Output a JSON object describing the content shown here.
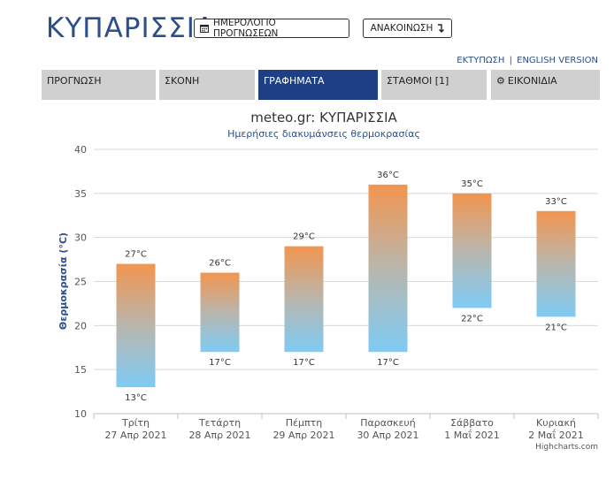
{
  "header": {
    "city": "ΚΥΠΑΡΙΣΣΙΑ",
    "calendar_button": "ΗΜΕΡΟΛΟΓΙΟ ΠΡΟΓΝΩΣΕΩΝ",
    "announce_button": "ΑΝΑΚΟΙΝΩΣΗ",
    "print_link": "ΕΚΤΥΠΩΣΗ",
    "separator": "|",
    "english_link": "ENGLISH VERSION"
  },
  "tabs": [
    {
      "label": "ΠΡΟΓΝΩΣΗ",
      "active": false
    },
    {
      "label": "ΣΚΟΝΗ",
      "active": false
    },
    {
      "label": "ΓΡΑΦΗΜΑΤΑ",
      "active": true
    },
    {
      "label": "ΣΤΑΘΜΟΙ [1]",
      "active": false
    },
    {
      "label": "ΕΙΚΟΝΙΔΙΑ",
      "active": false
    }
  ],
  "colors": {
    "brand": "#2c4f8c",
    "active_tab": "#1f3f85",
    "tab_bg": "#d0d0d0",
    "bar_top": "#f2954f",
    "bar_bottom": "#7ecbf5"
  },
  "chart_data": {
    "type": "bar",
    "title": "meteo.gr: ΚΥΠΑΡΙΣΣΙΑ",
    "subtitle": "Ημερήσιες διακυμάνσεις θερμοκρασίας",
    "ylabel": "Θερμοκρασία (°C)",
    "xlabel": "",
    "ylim": [
      10,
      40
    ],
    "yticks": [
      10,
      15,
      20,
      25,
      30,
      35,
      40
    ],
    "unit": "°C",
    "grid": true,
    "categories": [
      {
        "day": "Τρίτη",
        "date": "27 Απρ 2021"
      },
      {
        "day": "Τετάρτη",
        "date": "28 Απρ 2021"
      },
      {
        "day": "Πέμπτη",
        "date": "29 Απρ 2021"
      },
      {
        "day": "Παρασκευή",
        "date": "30 Απρ 2021"
      },
      {
        "day": "Σάββατο",
        "date": "1 Μαΐ 2021"
      },
      {
        "day": "Κυριακή",
        "date": "2 Μαΐ 2021"
      }
    ],
    "low": [
      13,
      17,
      17,
      17,
      22,
      21
    ],
    "high": [
      27,
      26,
      29,
      36,
      35,
      33
    ],
    "credits": "Highcharts.com"
  }
}
